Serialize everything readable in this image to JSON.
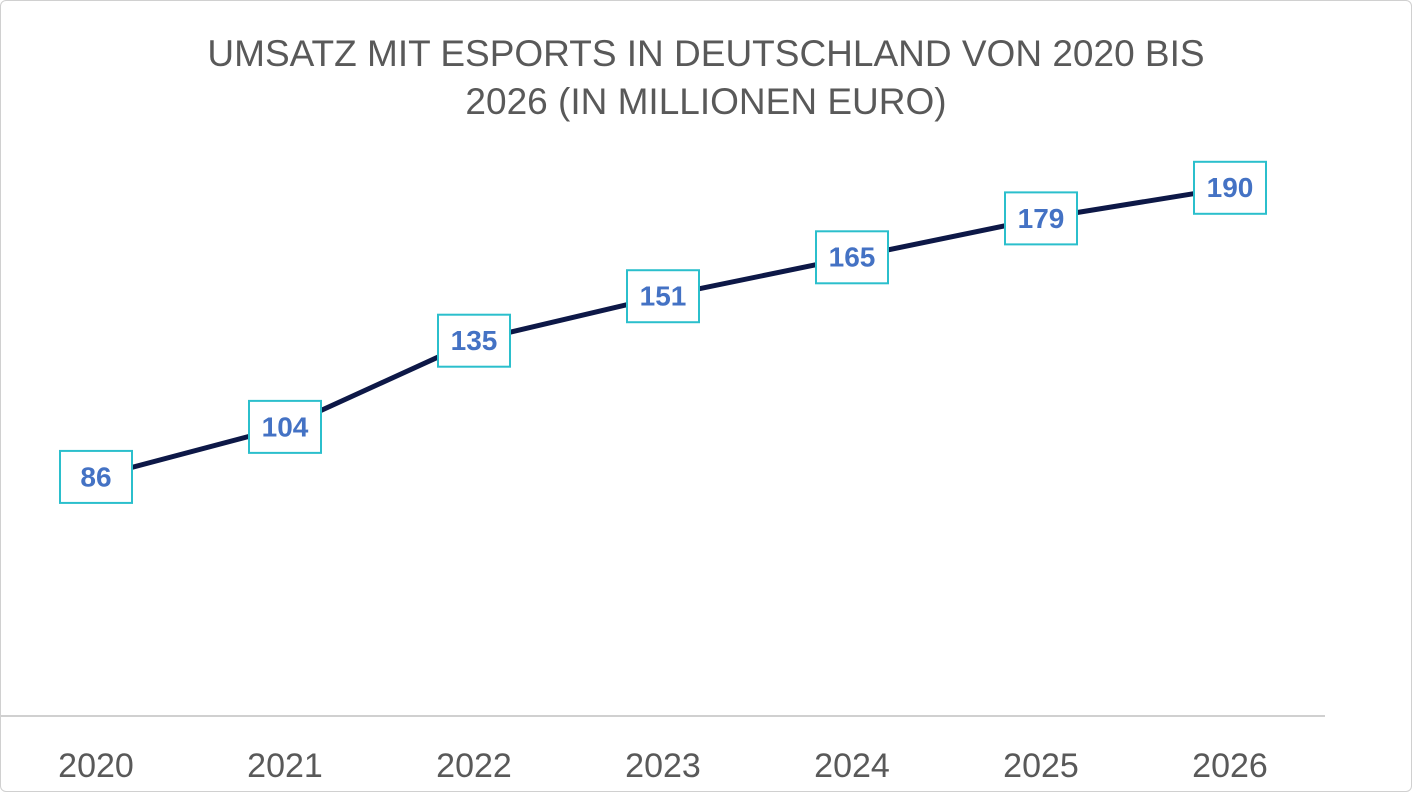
{
  "chart_data": {
    "type": "line",
    "title": "UMSATZ MIT ESPORTS IN DEUTSCHLAND VON 2020 BIS 2026 (IN MILLIONEN EURO)",
    "categories": [
      "2020",
      "2021",
      "2022",
      "2023",
      "2024",
      "2025",
      "2026"
    ],
    "series": [
      {
        "name": "Umsatz",
        "color": "#0d1847",
        "values": [
          86,
          104,
          135,
          151,
          165,
          179,
          190
        ]
      }
    ],
    "ylim": [
      0,
      200
    ],
    "grid": false,
    "label_border_color": "#2bbfcc",
    "label_color": "#4472c4"
  }
}
